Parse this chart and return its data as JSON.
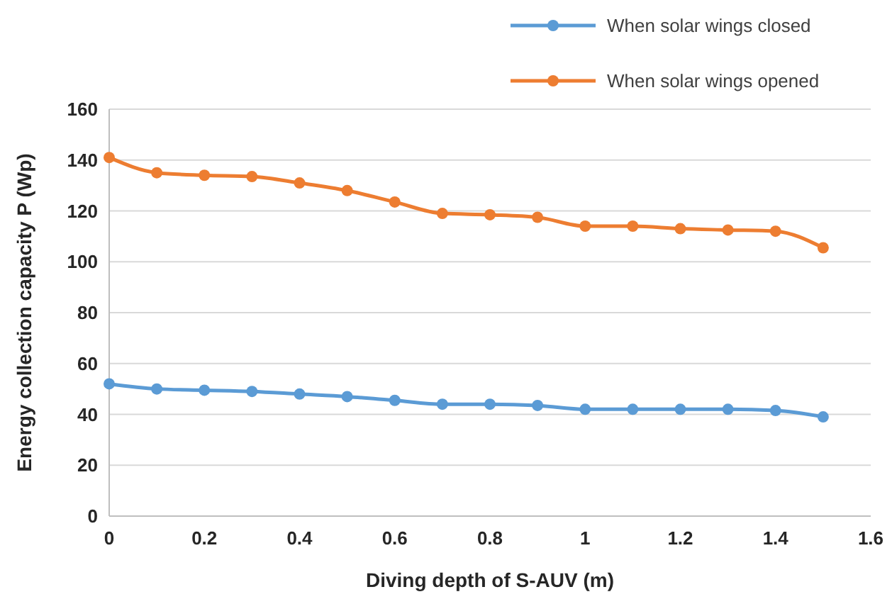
{
  "chart_data": {
    "type": "line",
    "xlabel": "Diving depth of S-AUV  (m)",
    "ylabel": "Energy collection capacity P (Wp)",
    "x": [
      0,
      0.1,
      0.2,
      0.3,
      0.4,
      0.5,
      0.6,
      0.7,
      0.8,
      0.9,
      1,
      1.1,
      1.2,
      1.3,
      1.4,
      1.5
    ],
    "xlim": [
      0,
      1.6
    ],
    "xticks": [
      0,
      0.2,
      0.4,
      0.6,
      0.8,
      1,
      1.2,
      1.4,
      1.6
    ],
    "ylim": [
      0,
      160
    ],
    "yticks": [
      0,
      20,
      40,
      60,
      80,
      100,
      120,
      140,
      160
    ],
    "grid": "y",
    "legend": "top right",
    "marker": "circle",
    "line_style": "solid",
    "series": [
      {
        "name": "When solar wings closed",
        "color": "#5b9bd5",
        "values": [
          52,
          50,
          49.5,
          49,
          48,
          47,
          45.5,
          44,
          44,
          43.5,
          42,
          42,
          42,
          42,
          41.5,
          39
        ]
      },
      {
        "name": "When solar wings opened",
        "color": "#ed7d31",
        "values": [
          141,
          135,
          134,
          133.5,
          131,
          128,
          123.5,
          119,
          118.5,
          117.5,
          114,
          114,
          113,
          112.5,
          112,
          105.5
        ]
      }
    ]
  }
}
